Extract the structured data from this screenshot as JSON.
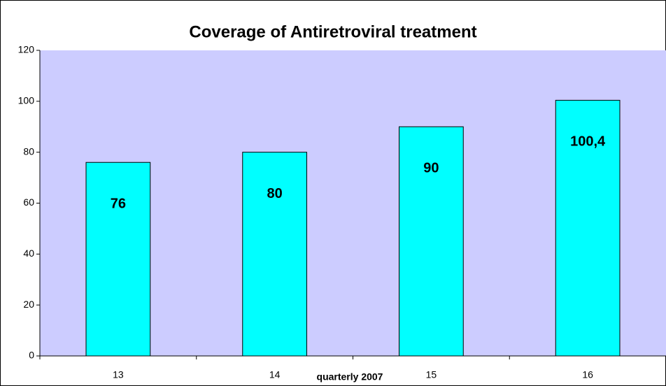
{
  "chart_data": {
    "type": "bar",
    "title": "Coverage of Antiretroviral treatment",
    "x_label": "quarterly 2007",
    "categories": [
      "13",
      "14",
      "15",
      "16"
    ],
    "values": [
      76,
      80,
      90,
      100.4
    ],
    "value_labels": [
      "76",
      "80",
      "90",
      "100,4"
    ],
    "color": "#00ffff",
    "plot_background": "#ccccff",
    "ylim": [
      0,
      120
    ],
    "yticks": [
      0,
      20,
      40,
      60,
      80,
      100,
      120
    ],
    "grid": false
  }
}
